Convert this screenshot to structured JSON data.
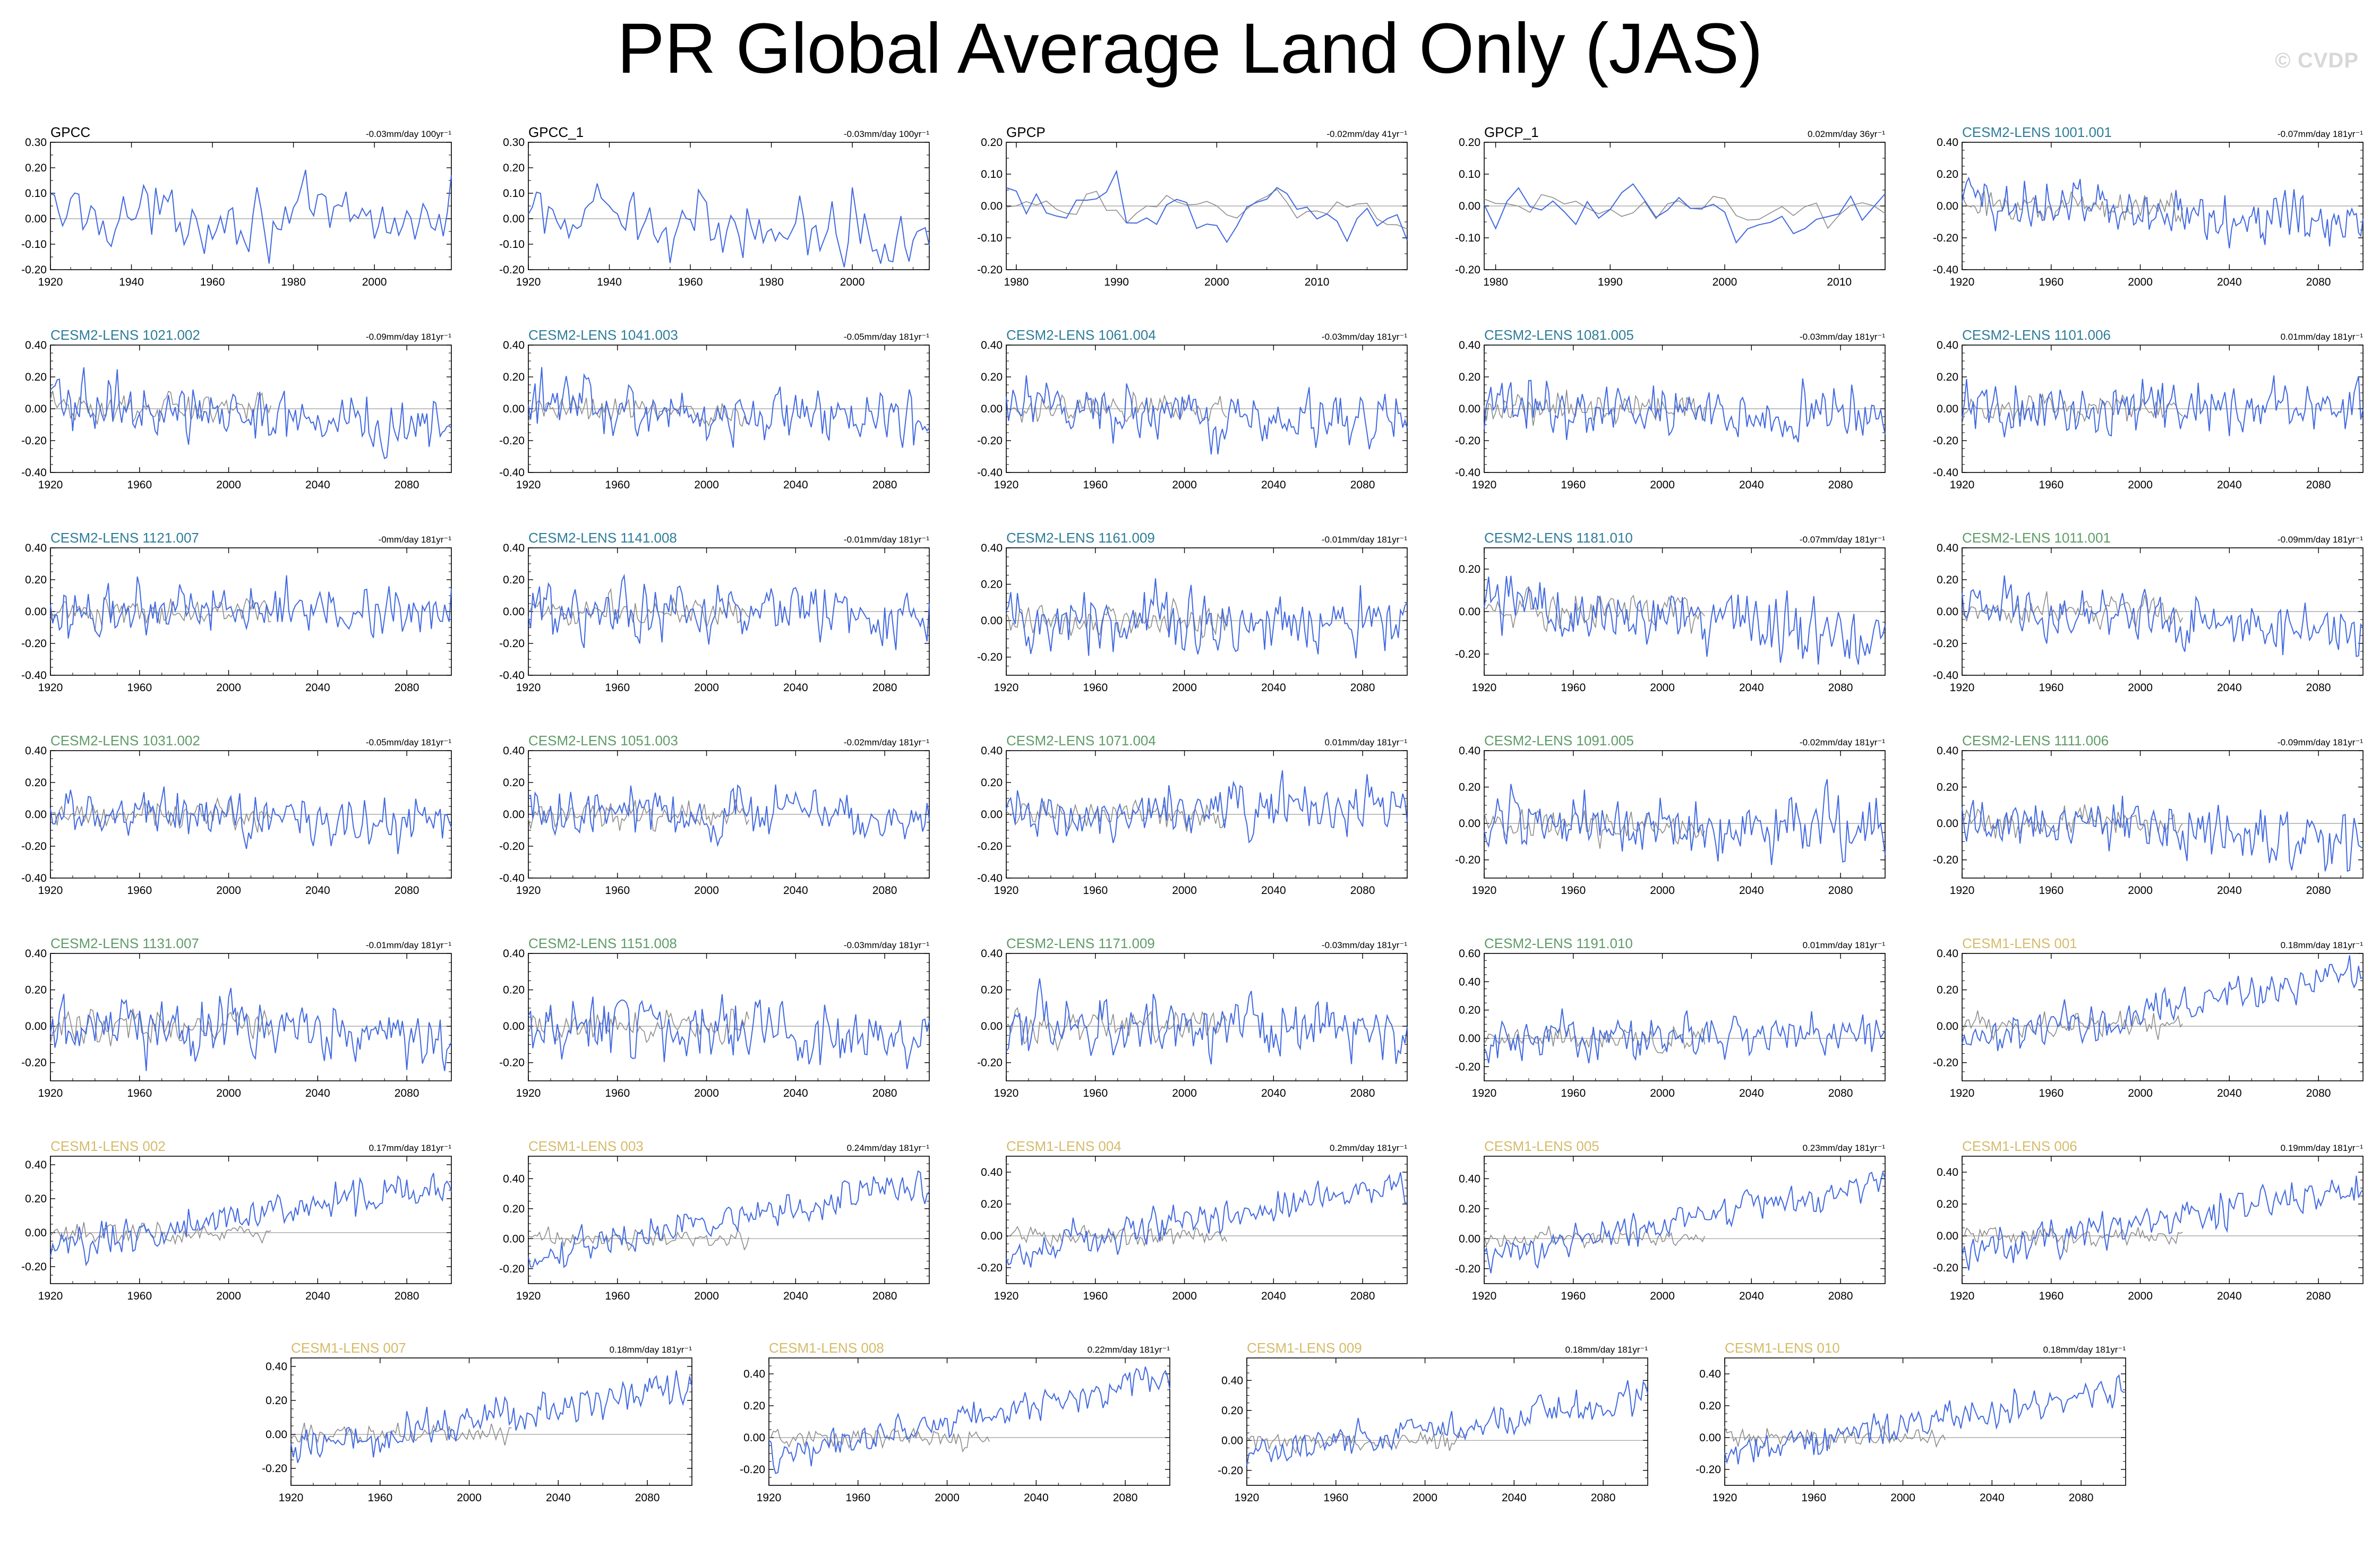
{
  "figure": {
    "title": "PR Global Average Land Only (JAS)",
    "watermark": "© CVDP"
  },
  "colors": {
    "observed_title": "#000000",
    "cesm2_macro_title": "#2e7d9a",
    "cesm2_smbb_title": "#5f9c68",
    "cesm1_title": "#d6bb6a",
    "ensemble_line": "#4169e1",
    "reference_line": "#8c8c8c"
  },
  "chart_data": [
    {
      "type": "line",
      "title": "GPCC",
      "trend": "-0.03mm/day 100yr⁻¹",
      "title_color": "#000000",
      "x_range": [
        1920,
        2019
      ],
      "xticks": [
        1920,
        1940,
        1960,
        1980,
        2000
      ],
      "ylim": [
        -0.2,
        0.3
      ],
      "yticks": [
        "0.30",
        "0.20",
        "0.10",
        "0.00",
        "-0.10",
        "-0.20"
      ],
      "reference": false,
      "trend_per_century": -0.03,
      "amplitude": 0.09
    },
    {
      "type": "line",
      "title": "GPCC_1",
      "trend": "-0.03mm/day 100yr⁻¹",
      "title_color": "#000000",
      "x_range": [
        1920,
        2019
      ],
      "xticks": [
        1920,
        1940,
        1960,
        1980,
        2000
      ],
      "ylim": [
        -0.2,
        0.3
      ],
      "yticks": [
        "0.30",
        "0.20",
        "0.10",
        "0.00",
        "-0.10",
        "-0.20"
      ],
      "reference": false,
      "trend_per_century": -0.03,
      "amplitude": 0.09
    },
    {
      "type": "line",
      "title": "GPCP",
      "trend": "-0.02mm/day 41yr⁻¹",
      "title_color": "#000000",
      "x_range": [
        1979,
        2019
      ],
      "xticks": [
        1980,
        1990,
        2000,
        2010
      ],
      "ylim": [
        -0.2,
        0.2
      ],
      "yticks": [
        "0.20",
        "0.10",
        "0.00",
        "-0.10",
        "-0.20"
      ],
      "reference": true,
      "trend_per_century": -0.02,
      "amplitude": 0.07
    },
    {
      "type": "line",
      "title": "GPCP_1",
      "trend": "0.02mm/day 36yr⁻¹",
      "title_color": "#000000",
      "x_range": [
        1979,
        2014
      ],
      "xticks": [
        1980,
        1990,
        2000,
        2010
      ],
      "ylim": [
        -0.2,
        0.2
      ],
      "yticks": [
        "0.20",
        "0.10",
        "0.00",
        "-0.10",
        "-0.20"
      ],
      "reference": true,
      "trend_per_century": 0.02,
      "amplitude": 0.07
    },
    {
      "type": "line",
      "title": "CESM2-LENS 1001.001",
      "trend": "-0.07mm/day 181yr⁻¹",
      "title_color": "#2e7d9a",
      "x_range": [
        1920,
        2100
      ],
      "xticks": [
        1920,
        1960,
        2000,
        2040,
        2080
      ],
      "ylim": [
        -0.4,
        0.4
      ],
      "yticks": [
        "0.40",
        "0.20",
        "0.00",
        "-0.20",
        "-0.40"
      ],
      "reference": true,
      "trend_per_century": -0.07,
      "amplitude": 0.12
    },
    {
      "type": "line",
      "title": "CESM2-LENS 1021.002",
      "trend": "-0.09mm/day 181yr⁻¹",
      "title_color": "#2e7d9a",
      "x_range": [
        1920,
        2100
      ],
      "xticks": [
        1920,
        1960,
        2000,
        2040,
        2080
      ],
      "ylim": [
        -0.4,
        0.4
      ],
      "yticks": [
        "0.40",
        "0.20",
        "0.00",
        "-0.20",
        "-0.40"
      ],
      "reference": true,
      "trend_per_century": -0.09,
      "amplitude": 0.12
    },
    {
      "type": "line",
      "title": "CESM2-LENS 1041.003",
      "trend": "-0.05mm/day 181yr⁻¹",
      "title_color": "#2e7d9a",
      "x_range": [
        1920,
        2100
      ],
      "xticks": [
        1920,
        1960,
        2000,
        2040,
        2080
      ],
      "ylim": [
        -0.4,
        0.4
      ],
      "yticks": [
        "0.40",
        "0.20",
        "0.00",
        "-0.20",
        "-0.40"
      ],
      "reference": true,
      "trend_per_century": -0.05,
      "amplitude": 0.12
    },
    {
      "type": "line",
      "title": "CESM2-LENS 1061.004",
      "trend": "-0.03mm/day 181yr⁻¹",
      "title_color": "#2e7d9a",
      "x_range": [
        1920,
        2100
      ],
      "xticks": [
        1920,
        1960,
        2000,
        2040,
        2080
      ],
      "ylim": [
        -0.4,
        0.4
      ],
      "yticks": [
        "0.40",
        "0.20",
        "0.00",
        "-0.20",
        "-0.40"
      ],
      "reference": true,
      "trend_per_century": -0.03,
      "amplitude": 0.12
    },
    {
      "type": "line",
      "title": "CESM2-LENS 1081.005",
      "trend": "-0.03mm/day 181yr⁻¹",
      "title_color": "#2e7d9a",
      "x_range": [
        1920,
        2100
      ],
      "xticks": [
        1920,
        1960,
        2000,
        2040,
        2080
      ],
      "ylim": [
        -0.4,
        0.4
      ],
      "yticks": [
        "0.40",
        "0.20",
        "0.00",
        "-0.20",
        "-0.40"
      ],
      "reference": true,
      "trend_per_century": -0.03,
      "amplitude": 0.12
    },
    {
      "type": "line",
      "title": "CESM2-LENS 1101.006",
      "trend": "0.01mm/day 181yr⁻¹",
      "title_color": "#2e7d9a",
      "x_range": [
        1920,
        2100
      ],
      "xticks": [
        1920,
        1960,
        2000,
        2040,
        2080
      ],
      "ylim": [
        -0.4,
        0.4
      ],
      "yticks": [
        "0.40",
        "0.20",
        "0.00",
        "-0.20",
        "-0.40"
      ],
      "reference": true,
      "trend_per_century": 0.01,
      "amplitude": 0.12
    },
    {
      "type": "line",
      "title": "CESM2-LENS 1121.007",
      "trend": "-0mm/day 181yr⁻¹",
      "title_color": "#2e7d9a",
      "x_range": [
        1920,
        2100
      ],
      "xticks": [
        1920,
        1960,
        2000,
        2040,
        2080
      ],
      "ylim": [
        -0.4,
        0.4
      ],
      "yticks": [
        "0.40",
        "0.20",
        "0.00",
        "-0.20",
        "-0.40"
      ],
      "reference": true,
      "trend_per_century": 0.0,
      "amplitude": 0.12
    },
    {
      "type": "line",
      "title": "CESM2-LENS 1141.008",
      "trend": "-0.01mm/day 181yr⁻¹",
      "title_color": "#2e7d9a",
      "x_range": [
        1920,
        2100
      ],
      "xticks": [
        1920,
        1960,
        2000,
        2040,
        2080
      ],
      "ylim": [
        -0.4,
        0.4
      ],
      "yticks": [
        "0.40",
        "0.20",
        "0.00",
        "-0.20",
        "-0.40"
      ],
      "reference": true,
      "trend_per_century": -0.01,
      "amplitude": 0.12
    },
    {
      "type": "line",
      "title": "CESM2-LENS 1161.009",
      "trend": "-0.01mm/day 181yr⁻¹",
      "title_color": "#2e7d9a",
      "x_range": [
        1920,
        2100
      ],
      "xticks": [
        1920,
        1960,
        2000,
        2040,
        2080
      ],
      "ylim": [
        -0.3,
        0.4
      ],
      "yticks": [
        "0.40",
        "0.20",
        "0.00",
        "-0.20"
      ],
      "reference": true,
      "trend_per_century": -0.01,
      "amplitude": 0.12
    },
    {
      "type": "line",
      "title": "CESM2-LENS 1181.010",
      "trend": "-0.07mm/day 181yr⁻¹",
      "title_color": "#2e7d9a",
      "x_range": [
        1920,
        2100
      ],
      "xticks": [
        1920,
        1960,
        2000,
        2040,
        2080
      ],
      "ylim": [
        -0.3,
        0.3
      ],
      "yticks": [
        "0.20",
        "0.00",
        "-0.20"
      ],
      "reference": true,
      "trend_per_century": -0.07,
      "amplitude": 0.11
    },
    {
      "type": "line",
      "title": "CESM2-LENS 1011.001",
      "trend": "-0.09mm/day 181yr⁻¹",
      "title_color": "#5f9c68",
      "x_range": [
        1920,
        2100
      ],
      "xticks": [
        1920,
        1960,
        2000,
        2040,
        2080
      ],
      "ylim": [
        -0.4,
        0.4
      ],
      "yticks": [
        "0.40",
        "0.20",
        "0.00",
        "-0.20",
        "-0.40"
      ],
      "reference": true,
      "trend_per_century": -0.09,
      "amplitude": 0.12
    },
    {
      "type": "line",
      "title": "CESM2-LENS 1031.002",
      "trend": "-0.05mm/day 181yr⁻¹",
      "title_color": "#5f9c68",
      "x_range": [
        1920,
        2100
      ],
      "xticks": [
        1920,
        1960,
        2000,
        2040,
        2080
      ],
      "ylim": [
        -0.4,
        0.4
      ],
      "yticks": [
        "0.40",
        "0.20",
        "0.00",
        "-0.20",
        "-0.40"
      ],
      "reference": true,
      "trend_per_century": -0.05,
      "amplitude": 0.12
    },
    {
      "type": "line",
      "title": "CESM2-LENS 1051.003",
      "trend": "-0.02mm/day 181yr⁻¹",
      "title_color": "#5f9c68",
      "x_range": [
        1920,
        2100
      ],
      "xticks": [
        1920,
        1960,
        2000,
        2040,
        2080
      ],
      "ylim": [
        -0.4,
        0.4
      ],
      "yticks": [
        "0.40",
        "0.20",
        "0.00",
        "-0.20",
        "-0.40"
      ],
      "reference": true,
      "trend_per_century": -0.02,
      "amplitude": 0.12
    },
    {
      "type": "line",
      "title": "CESM2-LENS 1071.004",
      "trend": "0.01mm/day 181yr⁻¹",
      "title_color": "#5f9c68",
      "x_range": [
        1920,
        2100
      ],
      "xticks": [
        1920,
        1960,
        2000,
        2040,
        2080
      ],
      "ylim": [
        -0.4,
        0.4
      ],
      "yticks": [
        "0.40",
        "0.20",
        "0.00",
        "-0.20",
        "-0.40"
      ],
      "reference": true,
      "trend_per_century": 0.01,
      "amplitude": 0.12
    },
    {
      "type": "line",
      "title": "CESM2-LENS 1091.005",
      "trend": "-0.02mm/day 181yr⁻¹",
      "title_color": "#5f9c68",
      "x_range": [
        1920,
        2100
      ],
      "xticks": [
        1920,
        1960,
        2000,
        2040,
        2080
      ],
      "ylim": [
        -0.3,
        0.4
      ],
      "yticks": [
        "0.40",
        "0.20",
        "0.00",
        "-0.20"
      ],
      "reference": true,
      "trend_per_century": -0.02,
      "amplitude": 0.12
    },
    {
      "type": "line",
      "title": "CESM2-LENS 1111.006",
      "trend": "-0.09mm/day 181yr⁻¹",
      "title_color": "#5f9c68",
      "x_range": [
        1920,
        2100
      ],
      "xticks": [
        1920,
        1960,
        2000,
        2040,
        2080
      ],
      "ylim": [
        -0.3,
        0.4
      ],
      "yticks": [
        "0.40",
        "0.20",
        "0.00",
        "-0.20"
      ],
      "reference": true,
      "trend_per_century": -0.09,
      "amplitude": 0.12
    },
    {
      "type": "line",
      "title": "CESM2-LENS 1131.007",
      "trend": "-0.01mm/day 181yr⁻¹",
      "title_color": "#5f9c68",
      "x_range": [
        1920,
        2100
      ],
      "xticks": [
        1920,
        1960,
        2000,
        2040,
        2080
      ],
      "ylim": [
        -0.3,
        0.4
      ],
      "yticks": [
        "0.40",
        "0.20",
        "0.00",
        "-0.20"
      ],
      "reference": true,
      "trend_per_century": -0.01,
      "amplitude": 0.12
    },
    {
      "type": "line",
      "title": "CESM2-LENS 1151.008",
      "trend": "-0.03mm/day 181yr⁻¹",
      "title_color": "#5f9c68",
      "x_range": [
        1920,
        2100
      ],
      "xticks": [
        1920,
        1960,
        2000,
        2040,
        2080
      ],
      "ylim": [
        -0.3,
        0.4
      ],
      "yticks": [
        "0.40",
        "0.20",
        "0.00",
        "-0.20"
      ],
      "reference": true,
      "trend_per_century": -0.03,
      "amplitude": 0.12
    },
    {
      "type": "line",
      "title": "CESM2-LENS 1171.009",
      "trend": "-0.03mm/day 181yr⁻¹",
      "title_color": "#5f9c68",
      "x_range": [
        1920,
        2100
      ],
      "xticks": [
        1920,
        1960,
        2000,
        2040,
        2080
      ],
      "ylim": [
        -0.3,
        0.4
      ],
      "yticks": [
        "0.40",
        "0.20",
        "0.00",
        "-0.20"
      ],
      "reference": true,
      "trend_per_century": -0.03,
      "amplitude": 0.12
    },
    {
      "type": "line",
      "title": "CESM2-LENS 1191.010",
      "trend": "0.01mm/day 181yr⁻¹",
      "title_color": "#5f9c68",
      "x_range": [
        1920,
        2100
      ],
      "xticks": [
        1920,
        1960,
        2000,
        2040,
        2080
      ],
      "ylim": [
        -0.3,
        0.6
      ],
      "yticks": [
        "0.60",
        "0.40",
        "0.20",
        "0.00",
        "-0.20"
      ],
      "reference": true,
      "trend_per_century": 0.01,
      "amplitude": 0.11
    },
    {
      "type": "line",
      "title": "CESM1-LENS 001",
      "trend": "0.18mm/day 181yr⁻¹",
      "title_color": "#d6bb6a",
      "x_range": [
        1920,
        2100
      ],
      "xticks": [
        1920,
        1960,
        2000,
        2040,
        2080
      ],
      "ylim": [
        -0.3,
        0.4
      ],
      "yticks": [
        "0.40",
        "0.20",
        "0.00",
        "-0.20"
      ],
      "reference": true,
      "trend_per_century": 0.18,
      "amplitude": 0.08
    },
    {
      "type": "line",
      "title": "CESM1-LENS 002",
      "trend": "0.17mm/day 181yr⁻¹",
      "title_color": "#d6bb6a",
      "x_range": [
        1920,
        2100
      ],
      "xticks": [
        1920,
        1960,
        2000,
        2040,
        2080
      ],
      "ylim": [
        -0.3,
        0.45
      ],
      "yticks": [
        "0.40",
        "0.20",
        "0.00",
        "-0.20"
      ],
      "reference": true,
      "trend_per_century": 0.17,
      "amplitude": 0.08
    },
    {
      "type": "line",
      "title": "CESM1-LENS 003",
      "trend": "0.24mm/day 181yr⁻¹",
      "title_color": "#d6bb6a",
      "x_range": [
        1920,
        2100
      ],
      "xticks": [
        1920,
        1960,
        2000,
        2040,
        2080
      ],
      "ylim": [
        -0.3,
        0.55
      ],
      "yticks": [
        "0.40",
        "0.20",
        "0.00",
        "-0.20"
      ],
      "reference": true,
      "trend_per_century": 0.24,
      "amplitude": 0.08
    },
    {
      "type": "line",
      "title": "CESM1-LENS 004",
      "trend": "0.2mm/day 181yr⁻¹",
      "title_color": "#d6bb6a",
      "x_range": [
        1920,
        2100
      ],
      "xticks": [
        1920,
        1960,
        2000,
        2040,
        2080
      ],
      "ylim": [
        -0.3,
        0.5
      ],
      "yticks": [
        "0.40",
        "0.20",
        "0.00",
        "-0.20"
      ],
      "reference": true,
      "trend_per_century": 0.2,
      "amplitude": 0.08
    },
    {
      "type": "line",
      "title": "CESM1-LENS 005",
      "trend": "0.23mm/day 181yr⁻¹",
      "title_color": "#d6bb6a",
      "x_range": [
        1920,
        2100
      ],
      "xticks": [
        1920,
        1960,
        2000,
        2040,
        2080
      ],
      "ylim": [
        -0.3,
        0.55
      ],
      "yticks": [
        "0.40",
        "0.20",
        "0.00",
        "-0.20"
      ],
      "reference": true,
      "trend_per_century": 0.23,
      "amplitude": 0.08
    },
    {
      "type": "line",
      "title": "CESM1-LENS 006",
      "trend": "0.19mm/day 181yr⁻¹",
      "title_color": "#d6bb6a",
      "x_range": [
        1920,
        2100
      ],
      "xticks": [
        1920,
        1960,
        2000,
        2040,
        2080
      ],
      "ylim": [
        -0.3,
        0.5
      ],
      "yticks": [
        "0.40",
        "0.20",
        "0.00",
        "-0.20"
      ],
      "reference": true,
      "trend_per_century": 0.19,
      "amplitude": 0.08
    },
    {
      "type": "line",
      "title": "CESM1-LENS 007",
      "trend": "0.18mm/day 181yr⁻¹",
      "title_color": "#d6bb6a",
      "x_range": [
        1920,
        2100
      ],
      "xticks": [
        1920,
        1960,
        2000,
        2040,
        2080
      ],
      "ylim": [
        -0.3,
        0.45
      ],
      "yticks": [
        "0.40",
        "0.20",
        "0.00",
        "-0.20"
      ],
      "reference": true,
      "trend_per_century": 0.18,
      "amplitude": 0.08
    },
    {
      "type": "line",
      "title": "CESM1-LENS 008",
      "trend": "0.22mm/day 181yr⁻¹",
      "title_color": "#d6bb6a",
      "x_range": [
        1920,
        2100
      ],
      "xticks": [
        1920,
        1960,
        2000,
        2040,
        2080
      ],
      "ylim": [
        -0.3,
        0.5
      ],
      "yticks": [
        "0.40",
        "0.20",
        "0.00",
        "-0.20"
      ],
      "reference": true,
      "trend_per_century": 0.22,
      "amplitude": 0.08
    },
    {
      "type": "line",
      "title": "CESM1-LENS 009",
      "trend": "0.18mm/day 181yr⁻¹",
      "title_color": "#d6bb6a",
      "x_range": [
        1920,
        2100
      ],
      "xticks": [
        1920,
        1960,
        2000,
        2040,
        2080
      ],
      "ylim": [
        -0.3,
        0.55
      ],
      "yticks": [
        "0.40",
        "0.20",
        "0.00",
        "-0.20"
      ],
      "reference": true,
      "trend_per_century": 0.18,
      "amplitude": 0.08
    },
    {
      "type": "line",
      "title": "CESM1-LENS 010",
      "trend": "0.18mm/day 181yr⁻¹",
      "title_color": "#d6bb6a",
      "x_range": [
        1920,
        2100
      ],
      "xticks": [
        1920,
        1960,
        2000,
        2040,
        2080
      ],
      "ylim": [
        -0.3,
        0.5
      ],
      "yticks": [
        "0.40",
        "0.20",
        "0.00",
        "-0.20"
      ],
      "reference": true,
      "trend_per_century": 0.18,
      "amplitude": 0.08
    }
  ]
}
